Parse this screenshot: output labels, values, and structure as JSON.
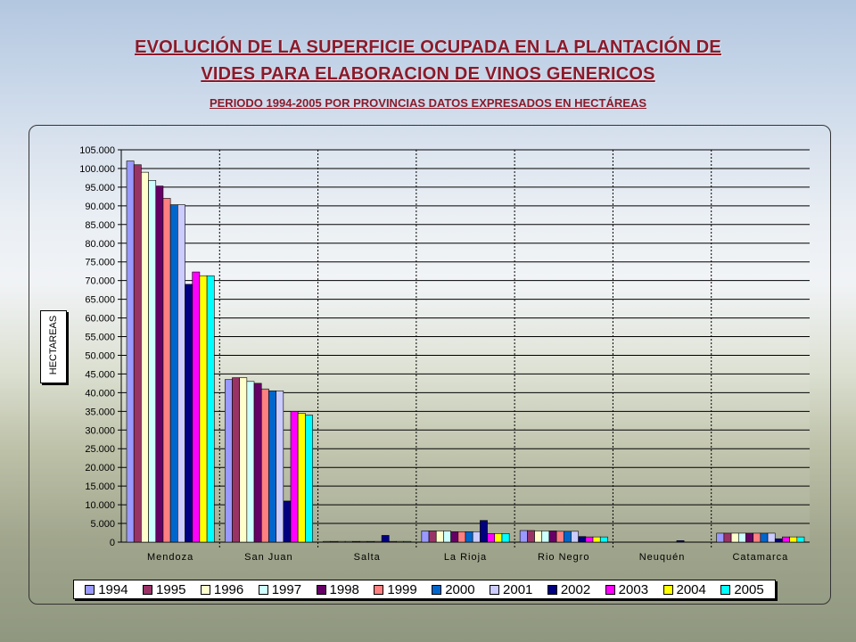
{
  "title": {
    "line1": "EVOLUCIÓN DE LA SUPERFICIE OCUPADA EN LA PLANTACIÓN DE",
    "line2": "VIDES PARA ELABORACION DE VINOS GENERICOS",
    "subtitle": "PERIODO 1994-2005 POR PROVINCIAS DATOS EXPRESADOS EN HECTÁREAS"
  },
  "chart_data": {
    "type": "bar",
    "ylabel": "HECTAREAS",
    "xlabel": "",
    "ylim": [
      0,
      105000
    ],
    "ytick_step": 5000,
    "ytick_labels": [
      "0",
      "5.000",
      "10.000",
      "15.000",
      "20.000",
      "25.000",
      "30.000",
      "35.000",
      "40.000",
      "45.000",
      "50.000",
      "55.000",
      "60.000",
      "65.000",
      "70.000",
      "75.000",
      "80.000",
      "85.000",
      "90.000",
      "95.000",
      "100.000",
      "105.000"
    ],
    "grid": true,
    "legend_position": "bottom",
    "categories": [
      "Mendoza",
      "San Juan",
      "Salta",
      "La Rioja",
      "Rio Negro",
      "Neuquén",
      "Catamarca"
    ],
    "series": [
      {
        "name": "1994",
        "color": "#9999ff",
        "values": [
          102000,
          43500,
          200,
          3000,
          3100,
          0,
          2400
        ]
      },
      {
        "name": "1995",
        "color": "#993366",
        "values": [
          101000,
          44000,
          200,
          3000,
          3100,
          0,
          2400
        ]
      },
      {
        "name": "1996",
        "color": "#ffffcc",
        "values": [
          99000,
          44000,
          200,
          3000,
          3000,
          0,
          2400
        ]
      },
      {
        "name": "1997",
        "color": "#ccffff",
        "values": [
          96800,
          43000,
          200,
          3000,
          3000,
          0,
          2400
        ]
      },
      {
        "name": "1998",
        "color": "#660066",
        "values": [
          95300,
          42500,
          200,
          2800,
          3000,
          0,
          2400
        ]
      },
      {
        "name": "1999",
        "color": "#ff8080",
        "values": [
          92000,
          41000,
          200,
          2800,
          2900,
          0,
          2400
        ]
      },
      {
        "name": "2000",
        "color": "#0066cc",
        "values": [
          90300,
          40500,
          200,
          2800,
          2900,
          0,
          2400
        ]
      },
      {
        "name": "2001",
        "color": "#ccccff",
        "values": [
          90300,
          40500,
          200,
          2800,
          2900,
          0,
          2400
        ]
      },
      {
        "name": "2002",
        "color": "#000080",
        "values": [
          69000,
          11000,
          1800,
          5800,
          1500,
          400,
          900
        ]
      },
      {
        "name": "2003",
        "color": "#ff00ff",
        "values": [
          72300,
          35000,
          200,
          2300,
          1400,
          0,
          1400
        ]
      },
      {
        "name": "2004",
        "color": "#ffff00",
        "values": [
          71300,
          34500,
          200,
          2300,
          1400,
          0,
          1400
        ]
      },
      {
        "name": "2005",
        "color": "#00ffff",
        "values": [
          71300,
          34000,
          200,
          2300,
          1400,
          0,
          1400
        ]
      }
    ]
  }
}
